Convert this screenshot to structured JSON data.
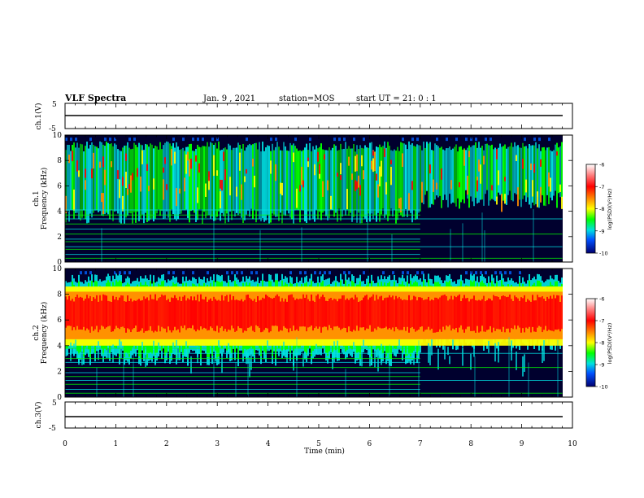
{
  "header": {
    "title": "VLF Spectra",
    "date": "Jan. 9 , 2021",
    "station": "station=MOS",
    "start_ut": "start UT = 21: 0 : 1"
  },
  "colors": {
    "scale": [
      "#ffffff",
      "#ff7a7a",
      "#ff0000",
      "#ff8c00",
      "#ffff00",
      "#00ff00",
      "#00e5e5",
      "#0060ff",
      "#0000a0",
      "#000033"
    ],
    "background": "#000033",
    "accent_red": "#ff2a00"
  },
  "chart_data": [
    {
      "type": "line",
      "name_label": "ch.1(V)",
      "ylabel": "ch.1(V)",
      "ylim": [
        -5,
        5
      ],
      "yticks": [
        "5",
        "-5"
      ],
      "x": [
        0,
        10
      ],
      "y": [
        -1,
        -1
      ],
      "xlim": [
        0,
        10
      ]
    },
    {
      "type": "heatmap",
      "ylabel": "ch.1\nFrequency (kHz)",
      "ylabel_lines": [
        "ch.1",
        "Frequency (kHz)"
      ],
      "ylim": [
        0,
        10
      ],
      "yticks": [
        "0",
        "2",
        "4",
        "6",
        "8",
        "10"
      ],
      "xlim": [
        0,
        10
      ],
      "data_end_min": 9.8,
      "colorbar": {
        "label": "log(PSD)(V²/Hz)",
        "ticks": [
          "-6",
          "-7",
          "-8",
          "-9",
          "-10"
        ],
        "range": [
          -10,
          -6
        ]
      },
      "features": {
        "broadband_band_khz": [
          3,
          9.5
        ],
        "change_at_min": 7.0,
        "narrowband_lines_khz": [
          0.3,
          0.6,
          1.0,
          1.2,
          1.6,
          1.8,
          2.2,
          2.6,
          3.0,
          3.4,
          3.7,
          4.1
        ]
      }
    },
    {
      "type": "heatmap",
      "ylabel": "ch.2\nFrequency (kHz)",
      "ylabel_lines": [
        "ch.2",
        "Frequency (kHz)"
      ],
      "ylim": [
        0,
        10
      ],
      "yticks": [
        "0",
        "2",
        "4",
        "6",
        "8",
        "10"
      ],
      "xlim": [
        0,
        10
      ],
      "data_end_min": 9.8,
      "colorbar": {
        "label": "log(PSD)(V²/Hz)",
        "ticks": [
          "-6",
          "-7",
          "-8",
          "-9",
          "-10"
        ],
        "range": [
          -10,
          -6
        ]
      },
      "features": {
        "intense_band_khz": [
          4.5,
          8.0
        ],
        "change_at_min": 7.0,
        "narrowband_lines_khz": [
          0.3,
          0.6,
          1.0,
          1.3,
          1.6,
          1.9,
          2.3,
          2.7,
          3.0,
          3.4,
          3.8
        ]
      }
    },
    {
      "type": "line",
      "name_label": "ch.3(V)",
      "ylabel": "ch.3(V)",
      "ylim": [
        -5,
        5
      ],
      "yticks": [
        "5",
        "-5"
      ],
      "x": [
        0,
        10
      ],
      "y": [
        -1.3,
        -1.3
      ],
      "xlim": [
        0,
        10
      ],
      "xlabel": "Time (min)",
      "xticks": [
        "0",
        "1",
        "2",
        "3",
        "4",
        "5",
        "6",
        "7",
        "8",
        "9",
        "10"
      ]
    }
  ]
}
